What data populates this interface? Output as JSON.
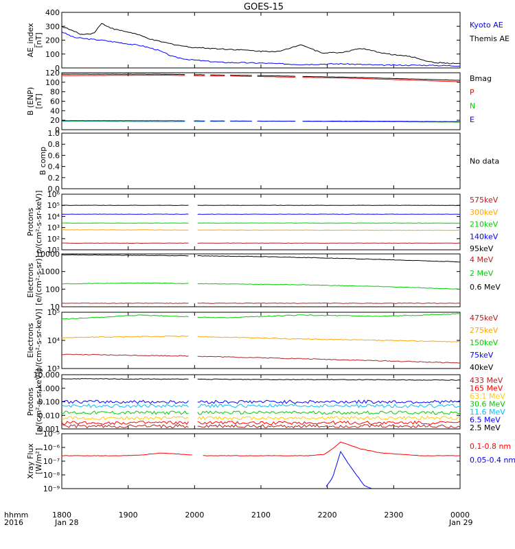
{
  "title": "GOES-15",
  "time_axis": {
    "ticks": [
      "1800",
      "1900",
      "2000",
      "2100",
      "2200",
      "2300",
      "0000"
    ],
    "row_label": "hhmm",
    "year_label": "2016",
    "start_date": "Jan 28",
    "end_date": "Jan 29"
  },
  "chart_data": [
    {
      "type": "line",
      "ylabel": "AE_index\n[nT]",
      "yticks": [
        "0",
        "100",
        "200",
        "300",
        "400"
      ],
      "ylim": [
        0,
        400
      ],
      "legend": [
        {
          "label": "Kyoto AE",
          "color": "#0000ff"
        },
        {
          "label": "Themis AE",
          "color": "#000000"
        }
      ],
      "series": [
        {
          "name": "Kyoto AE",
          "color": "#0000ff",
          "x": [
            0,
            0.03,
            0.06,
            0.1,
            0.15,
            0.2,
            0.24,
            0.28,
            0.32,
            0.36,
            0.4,
            0.5,
            0.6,
            0.7,
            0.8,
            0.9,
            1.0
          ],
          "y": [
            260,
            220,
            210,
            200,
            180,
            160,
            130,
            80,
            60,
            50,
            40,
            35,
            25,
            30,
            20,
            20,
            15
          ]
        },
        {
          "name": "Themis AE",
          "color": "#000000",
          "x": [
            0,
            0.05,
            0.08,
            0.1,
            0.13,
            0.18,
            0.23,
            0.28,
            0.32,
            0.38,
            0.45,
            0.5,
            0.55,
            0.6,
            0.65,
            0.7,
            0.75,
            0.82,
            0.88,
            0.93,
            1.0
          ],
          "y": [
            300,
            240,
            250,
            320,
            280,
            250,
            200,
            170,
            150,
            140,
            130,
            120,
            120,
            170,
            110,
            110,
            140,
            100,
            80,
            40,
            30
          ]
        }
      ]
    },
    {
      "type": "line",
      "ylabel": "B (ENP)\n[nT]",
      "yticks": [
        "0",
        "20",
        "40",
        "60",
        "80",
        "100",
        "120"
      ],
      "ylim": [
        0,
        120
      ],
      "legend": [
        {
          "label": "Bmag",
          "color": "#000000"
        },
        {
          "label": "P",
          "color": "#ff0000"
        },
        {
          "label": "N",
          "color": "#00cc00"
        },
        {
          "label": "E",
          "color": "#0000ff"
        }
      ],
      "series": [
        {
          "name": "Bmag",
          "color": "#000000",
          "x": [
            0,
            0.25,
            0.5,
            0.75,
            1.0
          ],
          "y": [
            117,
            117,
            114,
            110,
            104
          ]
        },
        {
          "name": "P",
          "color": "#ff0000",
          "x": [
            0,
            0.25,
            0.5,
            0.75,
            1.0
          ],
          "y": [
            114,
            115,
            112,
            108,
            101
          ]
        },
        {
          "name": "N",
          "color": "#00cc00",
          "x": [
            0,
            0.25,
            0.5,
            0.75,
            1.0
          ],
          "y": [
            18,
            17,
            18,
            17,
            16
          ]
        },
        {
          "name": "E",
          "color": "#0000ff",
          "x": [
            0,
            0.25,
            0.5,
            0.75,
            1.0
          ],
          "y": [
            19,
            19,
            18,
            18,
            17
          ]
        }
      ],
      "gaps": [
        [
          0.31,
          0.33
        ],
        [
          0.36,
          0.37
        ],
        [
          0.41,
          0.42
        ],
        [
          0.48,
          0.49
        ],
        [
          0.59,
          0.6
        ]
      ]
    },
    {
      "type": "line",
      "ylabel": "B comp",
      "yticks": [
        "0.0",
        "0.2",
        "0.4",
        "0.6",
        "0.8",
        "1.0"
      ],
      "ylim": [
        0,
        1
      ],
      "annotation": "No data",
      "series": []
    },
    {
      "type": "line",
      "ylabel": "Protons\np/(cm²-s-sr-keV)]",
      "yticks": [
        "10¹",
        "10²",
        "10³",
        "10⁴",
        "10⁵",
        "10⁶"
      ],
      "ylim": [
        1,
        6
      ],
      "log": true,
      "legend": [
        {
          "label": "575keV",
          "color": "#b22222"
        },
        {
          "label": "300keV",
          "color": "#ffa500"
        },
        {
          "label": "210keV",
          "color": "#00cc00"
        },
        {
          "label": "140keV",
          "color": "#0000ff"
        },
        {
          "label": "95keV",
          "color": "#000000"
        }
      ],
      "series": [
        {
          "name": "575keV",
          "color": "#b22222",
          "x": [
            0,
            1
          ],
          "y": [
            1.6,
            1.6
          ]
        },
        {
          "name": "300keV",
          "color": "#ffa500",
          "x": [
            0,
            1
          ],
          "y": [
            2.8,
            2.75
          ]
        },
        {
          "name": "210keV",
          "color": "#00cc00",
          "x": [
            0,
            1
          ],
          "y": [
            3.4,
            3.4
          ]
        },
        {
          "name": "140keV",
          "color": "#0000ff",
          "x": [
            0,
            1
          ],
          "y": [
            4.2,
            4.2
          ]
        },
        {
          "name": "95keV",
          "color": "#000000",
          "x": [
            0,
            1
          ],
          "y": [
            5.0,
            5.0
          ]
        }
      ],
      "gaps": [
        [
          0.32,
          0.34
        ]
      ]
    },
    {
      "type": "line",
      "ylabel": "Electrons\n[e/(cm²-s-sr)]",
      "yticks": [
        "10",
        "100",
        "1000",
        "10000"
      ],
      "ylim": [
        1,
        4
      ],
      "log": true,
      "legend": [
        {
          "label": "4 MeV",
          "color": "#b22222"
        },
        {
          "label": "2 MeV",
          "color": "#00cc00"
        },
        {
          "label": "0.6 MeV",
          "color": "#000000"
        }
      ],
      "series": [
        {
          "name": "4 MeV",
          "color": "#b22222",
          "x": [
            0,
            1
          ],
          "y": [
            1.2,
            1.2
          ]
        },
        {
          "name": "2 MeV",
          "color": "#00cc00",
          "x": [
            0,
            0.2,
            0.4,
            0.6,
            0.8,
            1.0
          ],
          "y": [
            2.3,
            2.35,
            2.3,
            2.25,
            2.15,
            2.0
          ]
        },
        {
          "name": "0.6 MeV",
          "color": "#000000",
          "x": [
            0,
            0.3,
            0.5,
            0.7,
            0.85,
            1.0
          ],
          "y": [
            3.95,
            3.9,
            3.85,
            3.75,
            3.65,
            3.55
          ]
        }
      ],
      "gaps": [
        [
          0.32,
          0.34
        ]
      ]
    },
    {
      "type": "line",
      "ylabel": "Electrons\np/(cm²-s-sr-keV)]",
      "yticks": [
        "10³",
        "10⁴",
        "10⁵"
      ],
      "ylim": [
        3,
        5
      ],
      "log": true,
      "legend": [
        {
          "label": "475keV",
          "color": "#b22222"
        },
        {
          "label": "275keV",
          "color": "#ffa500"
        },
        {
          "label": "150keV",
          "color": "#00cc00"
        },
        {
          "label": "75keV",
          "color": "#0000ff"
        },
        {
          "label": "40keV",
          "color": "#000000"
        }
      ],
      "series": [
        {
          "name": "475keV",
          "color": "#b22222",
          "x": [
            0,
            0.3,
            0.6,
            1.0
          ],
          "y": [
            3.5,
            3.45,
            3.35,
            3.2
          ]
        },
        {
          "name": "275keV",
          "color": "#ffa500",
          "x": [
            0,
            0.3,
            0.6,
            1.0
          ],
          "y": [
            4.1,
            4.15,
            4.05,
            3.95
          ]
        },
        {
          "name": "150keV",
          "color": "#00cc00",
          "x": [
            0,
            0.2,
            0.4,
            0.6,
            0.8,
            1.0
          ],
          "y": [
            4.75,
            4.9,
            4.8,
            4.9,
            4.85,
            4.95
          ]
        }
      ],
      "gaps": [
        [
          0.32,
          0.34
        ]
      ]
    },
    {
      "type": "line",
      "ylabel": "Protons\n[p/(cm²-s-sr-keV)]",
      "yticks": [
        "0.001",
        "0.010",
        "0.100",
        "1.000",
        "10.000"
      ],
      "ylim": [
        -3,
        1
      ],
      "log": true,
      "legend": [
        {
          "label": "433 MeV",
          "color": "#b22222"
        },
        {
          "label": "165 MeV",
          "color": "#ff0000"
        },
        {
          "label": "63.1 MeV",
          "color": "#ffcc00"
        },
        {
          "label": "30.6 MeV",
          "color": "#00cc00"
        },
        {
          "label": "11.6 MeV",
          "color": "#00bfff"
        },
        {
          "label": "6.5 MeV",
          "color": "#0000ff"
        },
        {
          "label": "2.5 MeV",
          "color": "#000000"
        }
      ],
      "series": [
        {
          "name": "2.5 MeV",
          "color": "#000000",
          "x": [
            0,
            1
          ],
          "y": [
            0.7,
            0.6
          ]
        },
        {
          "name": "6.5 MeV",
          "color": "#0000ff",
          "x": [
            0,
            1
          ],
          "y": [
            -1.0,
            -1.0
          ]
        },
        {
          "name": "11.6 MeV",
          "color": "#00bfff",
          "x": [
            0,
            1
          ],
          "y": [
            -1.3,
            -1.3
          ]
        },
        {
          "name": "30.6 MeV",
          "color": "#00cc00",
          "x": [
            0,
            1
          ],
          "y": [
            -1.8,
            -1.8
          ]
        },
        {
          "name": "63.1 MeV",
          "color": "#ffcc00",
          "x": [
            0,
            1
          ],
          "y": [
            -2.2,
            -2.2
          ]
        },
        {
          "name": "165 MeV",
          "color": "#ff0000",
          "x": [
            0,
            1
          ],
          "y": [
            -2.55,
            -2.55
          ]
        },
        {
          "name": "433 MeV",
          "color": "#b22222",
          "x": [
            0,
            1
          ],
          "y": [
            -2.8,
            -2.8
          ]
        }
      ],
      "gaps": [
        [
          0.32,
          0.34
        ]
      ]
    },
    {
      "type": "line",
      "ylabel": "Xray Flux\n[W/m²]",
      "yticks": [
        "10⁻⁹",
        "10⁻⁸",
        "10⁻⁷",
        "10⁻⁶",
        "10⁻⁵"
      ],
      "ylim": [
        -9,
        -5
      ],
      "log": true,
      "legend": [
        {
          "label": "0.1-0.8 nm",
          "color": "#ff0000"
        },
        {
          "label": "0.05-0.4 nm",
          "color": "#0000ff"
        }
      ],
      "series": [
        {
          "name": "0.1-0.8 nm",
          "color": "#ff0000",
          "x": [
            0,
            0.15,
            0.2,
            0.25,
            0.35,
            0.45,
            0.55,
            0.62,
            0.66,
            0.68,
            0.7,
            0.72,
            0.75,
            0.8,
            0.85,
            0.9,
            1.0
          ],
          "y": [
            -6.6,
            -6.6,
            -6.55,
            -6.4,
            -6.6,
            -6.6,
            -6.6,
            -6.6,
            -6.5,
            -6.1,
            -5.6,
            -5.8,
            -6.1,
            -6.4,
            -6.5,
            -6.6,
            -6.6
          ]
        },
        {
          "name": "0.05-0.4 nm",
          "color": "#0000ff",
          "x": [
            0.66,
            0.68,
            0.7,
            0.72,
            0.74,
            0.76,
            0.78
          ],
          "y": [
            -9.0,
            -8.2,
            -6.3,
            -7.2,
            -8.0,
            -8.8,
            -9.0
          ]
        }
      ],
      "gaps": [
        [
          0.33,
          0.35
        ]
      ]
    }
  ]
}
